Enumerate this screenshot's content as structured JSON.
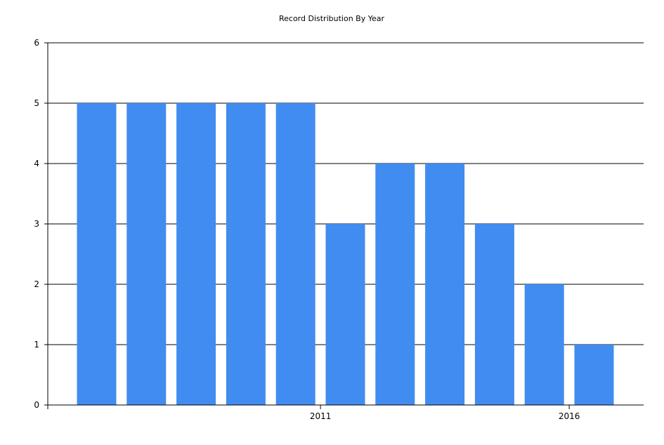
{
  "chart_data": {
    "type": "bar",
    "title": "Record Distribution By Year",
    "xlabel": "",
    "ylabel": "",
    "categories": [
      "2006",
      "2007",
      "2008",
      "2009",
      "2010",
      "2011",
      "2012",
      "2013",
      "2014",
      "2015",
      "2016"
    ],
    "values": [
      5,
      5,
      5,
      5,
      5,
      3,
      4,
      4,
      3,
      2,
      1
    ],
    "x_tick_labels": [
      "2011",
      "2016"
    ],
    "ylim": [
      0,
      6
    ],
    "y_ticks": [
      "0",
      "1",
      "2",
      "3",
      "4",
      "5",
      "6"
    ],
    "grid": "horizontal",
    "bar_color": "#418CF0",
    "grid_color": "#000000"
  }
}
